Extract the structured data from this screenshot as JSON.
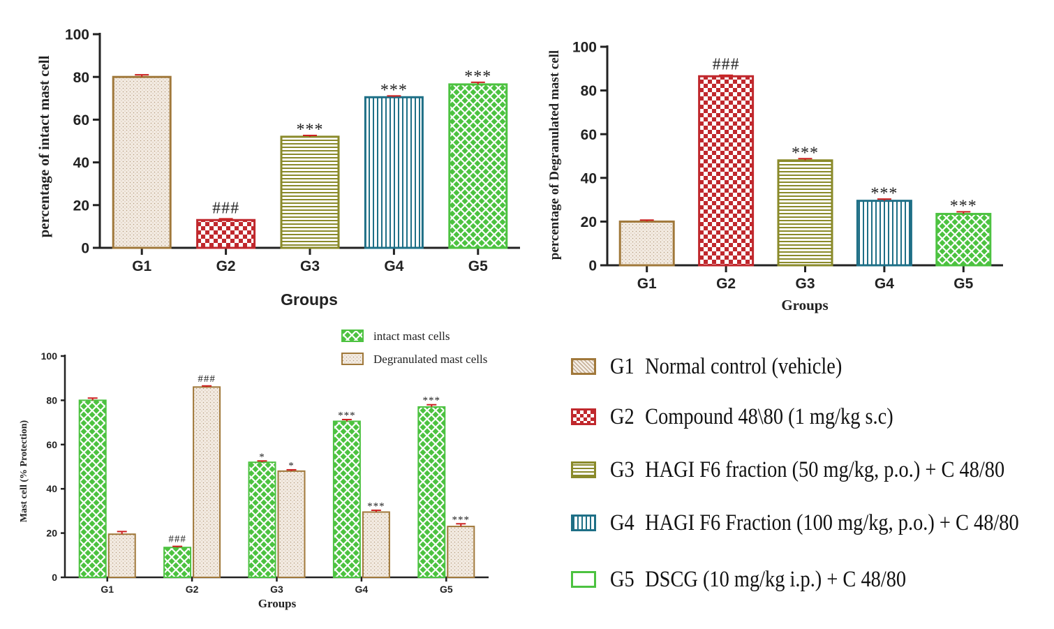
{
  "colors": {
    "g1": "#a0783a",
    "g2": "#c0282d",
    "g3": "#8a8a2a",
    "g4": "#1e6f86",
    "g5": "#4cc240",
    "error": "#cc2222"
  },
  "chart_data": [
    {
      "type": "bar",
      "title": "",
      "xlabel": "Groups",
      "ylabel": "percentage of intact mast cell",
      "ylim": [
        0,
        100
      ],
      "yticks": [
        "0",
        "20",
        "40",
        "60",
        "80",
        "100"
      ],
      "categories": [
        "G1",
        "G2",
        "G3",
        "G4",
        "G5"
      ],
      "values": [
        80,
        13,
        52,
        70.5,
        76.5
      ],
      "errors": [
        1,
        0.6,
        0.6,
        0.6,
        1
      ],
      "annotations": [
        "",
        "###",
        "***",
        "***",
        "***"
      ]
    },
    {
      "type": "bar",
      "title": "",
      "xlabel": "Groups",
      "ylabel": "percentage of Degranulated mast cell",
      "ylim": [
        0,
        100
      ],
      "yticks": [
        "0",
        "20",
        "40",
        "60",
        "80",
        "100"
      ],
      "categories": [
        "G1",
        "G2",
        "G3",
        "G4",
        "G5"
      ],
      "values": [
        20,
        86.5,
        48,
        29.5,
        23.5
      ],
      "errors": [
        0.7,
        0.5,
        0.8,
        0.8,
        1
      ],
      "annotations": [
        "",
        "###",
        "***",
        "***",
        "***"
      ]
    },
    {
      "type": "bar",
      "title": "",
      "xlabel": "Groups",
      "ylabel": "Mast cell (% Protection)",
      "ylim": [
        0,
        100
      ],
      "yticks": [
        "0",
        "20",
        "40",
        "60",
        "80",
        "100"
      ],
      "categories": [
        "G1",
        "G2",
        "G3",
        "G4",
        "G5"
      ],
      "legend_position": "top-right",
      "series": [
        {
          "name": "intact mast cells",
          "values": [
            80,
            13.5,
            52,
            70.5,
            77
          ],
          "errors": [
            1,
            0.5,
            0.6,
            0.8,
            1
          ],
          "annotations": [
            "",
            "###",
            "*",
            "***",
            "***"
          ]
        },
        {
          "name": "Degranulated mast cells",
          "values": [
            19.5,
            86,
            48,
            29.5,
            23
          ],
          "errors": [
            1.2,
            0.5,
            0.6,
            0.8,
            1.2
          ],
          "annotations": [
            "",
            "###",
            "*",
            "***",
            "***"
          ]
        }
      ]
    }
  ],
  "legend": [
    {
      "code": "G1",
      "label": "Normal control (vehicle)"
    },
    {
      "code": "G2",
      "label": "Compound 48\\80 (1 mg/kg s.c)"
    },
    {
      "code": "G3",
      "label": "HAGI F6 fraction (50 mg/kg, p.o.) + C 48/80"
    },
    {
      "code": "G4",
      "label": "HAGI F6 Fraction (100 mg/kg, p.o.) + C 48/80"
    },
    {
      "code": "G5",
      "label": "DSCG (10 mg/kg i.p.) + C 48/80"
    }
  ]
}
